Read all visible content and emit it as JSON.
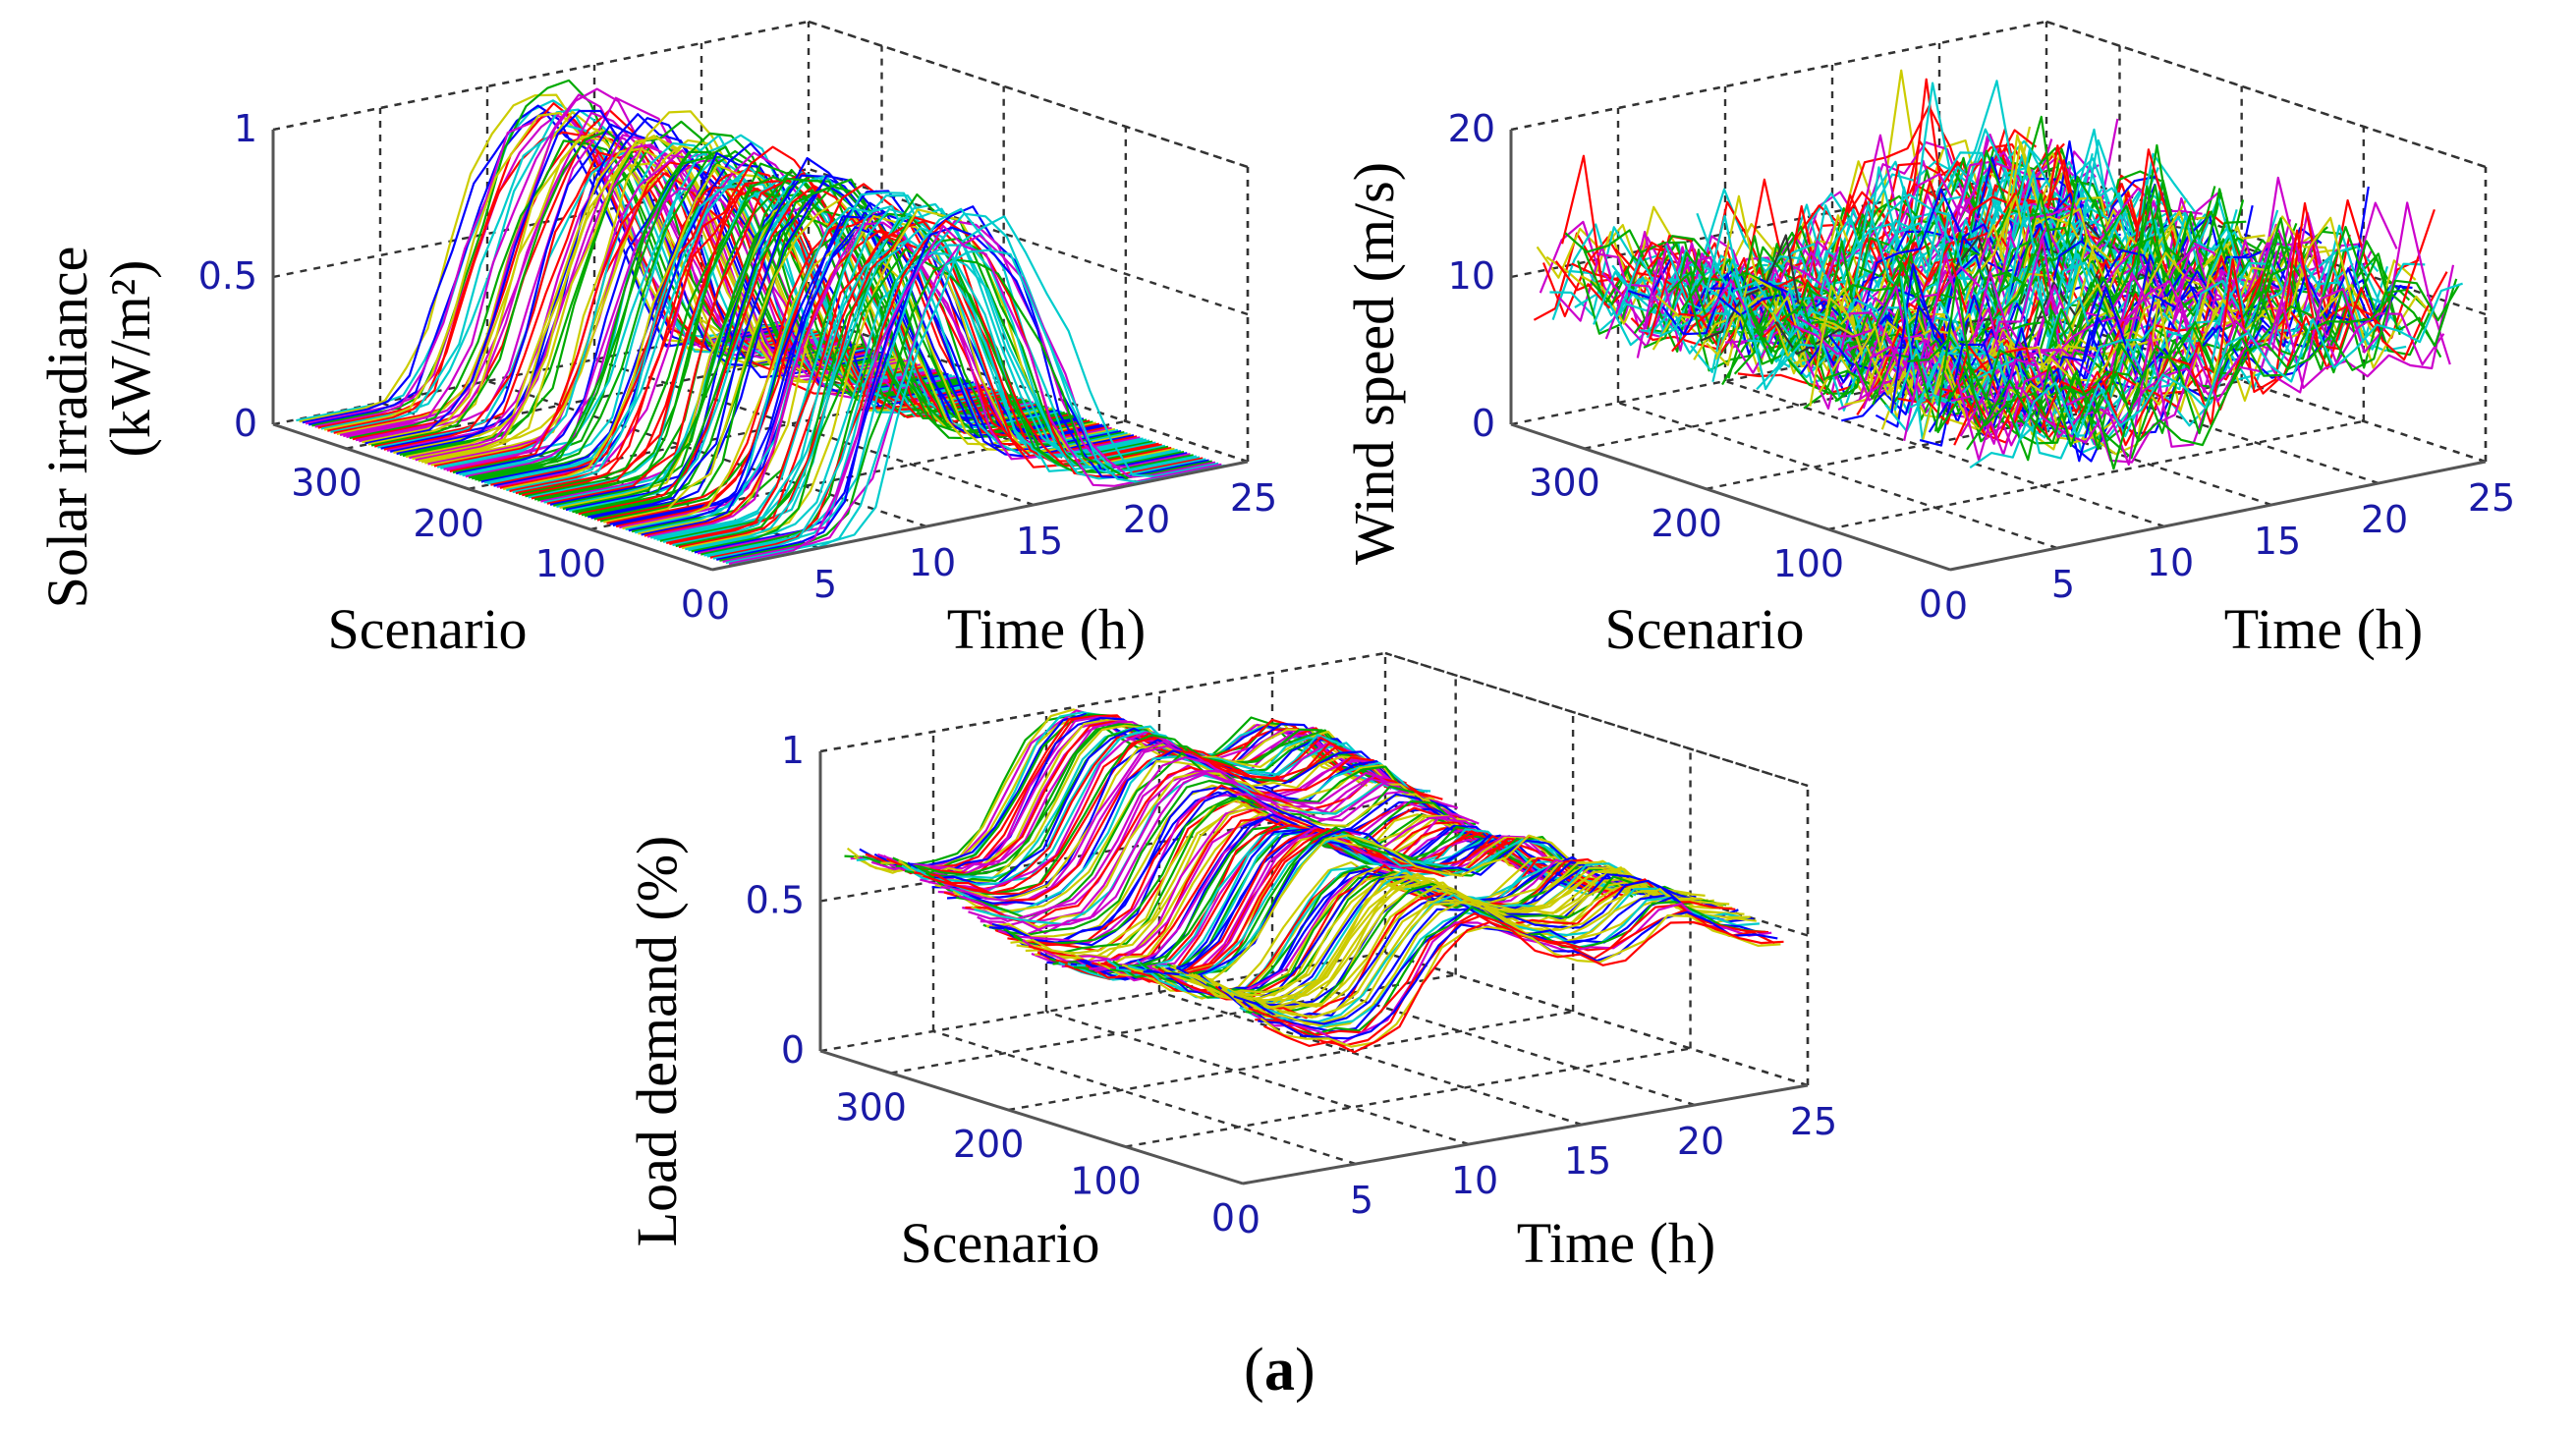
{
  "caption": {
    "label": "a"
  },
  "colors": [
    "#ff0000",
    "#00aa00",
    "#0000ff",
    "#00cccc",
    "#cc00cc",
    "#cccc00",
    "#333333"
  ],
  "chart_data": [
    {
      "id": "solar",
      "type": "surface-lines",
      "zlabel_line1": "Solar irradiance",
      "zlabel_line2": "(kW/m²)",
      "xlabel": "Time (h)",
      "ylabel": "Scenario",
      "xticks": [
        "0",
        "5",
        "10",
        "15",
        "20",
        "25"
      ],
      "yticks": [
        "0",
        "100",
        "200",
        "300"
      ],
      "zticks": [
        "0",
        "0.5",
        "1"
      ],
      "xlim": [
        0,
        25
      ],
      "ylim": [
        0,
        360
      ],
      "zlim": [
        0,
        1
      ],
      "hours": [
        1,
        2,
        3,
        4,
        5,
        6,
        7,
        8,
        9,
        10,
        11,
        12,
        13,
        14,
        15,
        16,
        17,
        18,
        19,
        20,
        21,
        22,
        23,
        24
      ],
      "base_profile": [
        0,
        0,
        0,
        0,
        0,
        0.02,
        0.12,
        0.35,
        0.6,
        0.8,
        0.93,
        1.0,
        0.98,
        0.9,
        0.75,
        0.55,
        0.32,
        0.12,
        0.02,
        0,
        0,
        0,
        0,
        0
      ],
      "scenarios": 360
    },
    {
      "id": "wind",
      "type": "surface-lines",
      "zlabel_line1": "Wind speed (m/s)",
      "xlabel": "Time (h)",
      "ylabel": "Scenario",
      "xticks": [
        "0",
        "5",
        "10",
        "15",
        "20",
        "25"
      ],
      "yticks": [
        "0",
        "100",
        "200",
        "300"
      ],
      "zticks": [
        "0",
        "10",
        "20"
      ],
      "xlim": [
        0,
        25
      ],
      "ylim": [
        0,
        360
      ],
      "zlim": [
        0,
        20
      ],
      "hours": [
        1,
        2,
        3,
        4,
        5,
        6,
        7,
        8,
        9,
        10,
        11,
        12,
        13,
        14,
        15,
        16,
        17,
        18,
        19,
        20,
        21,
        22,
        23,
        24
      ],
      "base_profile": [
        10,
        10,
        9.8,
        9.5,
        9,
        8.5,
        8,
        7.5,
        7,
        7,
        7.5,
        8,
        8.5,
        9,
        9.5,
        10,
        10,
        10.5,
        10.5,
        10.5,
        10,
        10,
        10,
        10
      ],
      "scenarios": 360
    },
    {
      "id": "load",
      "type": "surface-lines",
      "zlabel_line1": "Load demand (%)",
      "xlabel": "Time (h)",
      "ylabel": "Scenario",
      "xticks": [
        "0",
        "5",
        "10",
        "15",
        "20",
        "25"
      ],
      "yticks": [
        "0",
        "100",
        "200",
        "300"
      ],
      "zticks": [
        "0",
        "0.5",
        "1"
      ],
      "xlim": [
        0,
        25
      ],
      "ylim": [
        0,
        360
      ],
      "zlim": [
        0,
        1
      ],
      "hours": [
        1,
        2,
        3,
        4,
        5,
        6,
        7,
        8,
        9,
        10,
        11,
        12,
        13,
        14,
        15,
        16,
        17,
        18,
        19,
        20,
        21,
        22,
        23,
        24
      ],
      "base_profile": [
        0.62,
        0.58,
        0.55,
        0.53,
        0.53,
        0.55,
        0.62,
        0.75,
        0.88,
        0.95,
        0.97,
        0.93,
        0.87,
        0.82,
        0.78,
        0.75,
        0.74,
        0.78,
        0.82,
        0.8,
        0.72,
        0.65,
        0.6,
        0.56
      ],
      "scenarios": 360
    }
  ]
}
